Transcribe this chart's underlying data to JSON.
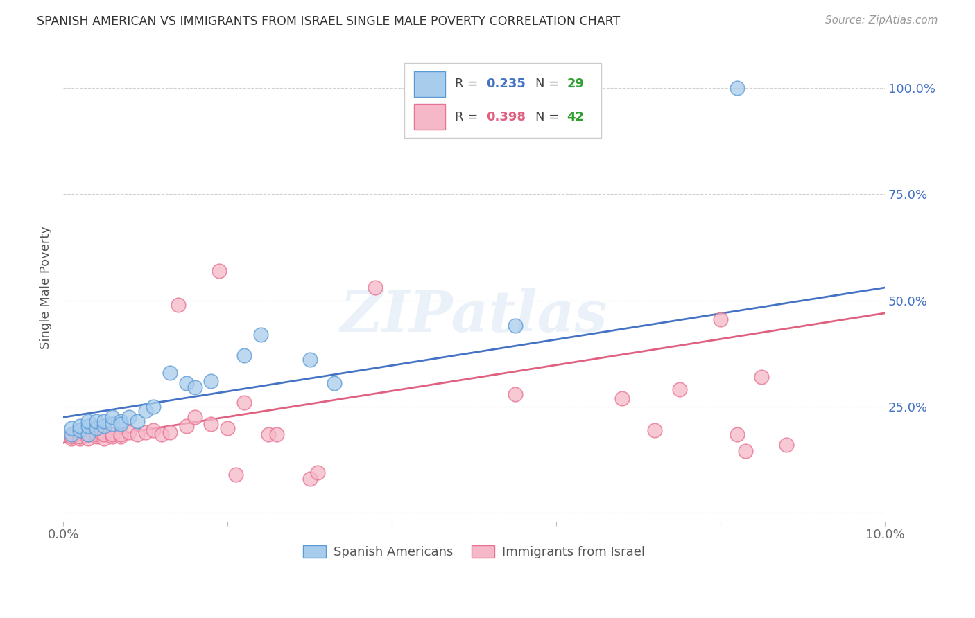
{
  "title": "SPANISH AMERICAN VS IMMIGRANTS FROM ISRAEL SINGLE MALE POVERTY CORRELATION CHART",
  "source": "Source: ZipAtlas.com",
  "ylabel": "Single Male Poverty",
  "xlim": [
    0.0,
    0.1
  ],
  "ylim": [
    -0.02,
    1.08
  ],
  "xticks": [
    0.0,
    0.02,
    0.04,
    0.06,
    0.08,
    0.1
  ],
  "xtick_labels": [
    "0.0%",
    "",
    "",
    "",
    "",
    "10.0%"
  ],
  "yticks": [
    0.0,
    0.25,
    0.5,
    0.75,
    1.0
  ],
  "ytick_labels": [
    "",
    "25.0%",
    "50.0%",
    "75.0%",
    "100.0%"
  ],
  "blue_color": "#a8ccec",
  "pink_color": "#f5b8c8",
  "blue_edge_color": "#5b9bd5",
  "pink_edge_color": "#e87090",
  "blue_line_color": "#4472c4",
  "pink_line_color": "#e06080",
  "legend_R1_color": "#4472c4",
  "legend_N1_color": "#30a030",
  "legend_R2_color": "#e06080",
  "legend_N2_color": "#30a030",
  "label_blue": "Spanish Americans",
  "label_pink": "Immigrants from Israel",
  "watermark": "ZIPatlas",
  "blue_x": [
    0.001,
    0.001,
    0.002,
    0.002,
    0.003,
    0.003,
    0.003,
    0.004,
    0.004,
    0.005,
    0.005,
    0.006,
    0.006,
    0.007,
    0.007,
    0.008,
    0.009,
    0.01,
    0.011,
    0.013,
    0.015,
    0.016,
    0.018,
    0.022,
    0.024,
    0.03,
    0.033,
    0.055,
    0.082
  ],
  "blue_y": [
    0.185,
    0.2,
    0.195,
    0.205,
    0.185,
    0.205,
    0.215,
    0.2,
    0.215,
    0.205,
    0.215,
    0.21,
    0.225,
    0.215,
    0.21,
    0.225,
    0.215,
    0.24,
    0.25,
    0.33,
    0.305,
    0.295,
    0.31,
    0.37,
    0.42,
    0.36,
    0.305,
    0.44,
    1.0
  ],
  "pink_x": [
    0.001,
    0.001,
    0.002,
    0.002,
    0.003,
    0.003,
    0.004,
    0.004,
    0.005,
    0.005,
    0.006,
    0.006,
    0.007,
    0.007,
    0.008,
    0.009,
    0.01,
    0.011,
    0.012,
    0.013,
    0.014,
    0.015,
    0.016,
    0.018,
    0.019,
    0.02,
    0.021,
    0.022,
    0.025,
    0.026,
    0.03,
    0.031,
    0.038,
    0.055,
    0.068,
    0.072,
    0.075,
    0.08,
    0.082,
    0.083,
    0.085,
    0.088
  ],
  "pink_y": [
    0.175,
    0.18,
    0.175,
    0.18,
    0.175,
    0.185,
    0.18,
    0.185,
    0.175,
    0.185,
    0.18,
    0.185,
    0.18,
    0.185,
    0.19,
    0.185,
    0.19,
    0.195,
    0.185,
    0.19,
    0.49,
    0.205,
    0.225,
    0.21,
    0.57,
    0.2,
    0.09,
    0.26,
    0.185,
    0.185,
    0.08,
    0.095,
    0.53,
    0.28,
    0.27,
    0.195,
    0.29,
    0.455,
    0.185,
    0.145,
    0.32,
    0.16
  ],
  "blue_trend_x": [
    0.0,
    0.1
  ],
  "blue_trend_y": [
    0.225,
    0.53
  ],
  "pink_trend_x": [
    0.0,
    0.1
  ],
  "pink_trend_y": [
    0.165,
    0.47
  ],
  "grid_color": "#d0d0d0",
  "background_color": "#ffffff"
}
